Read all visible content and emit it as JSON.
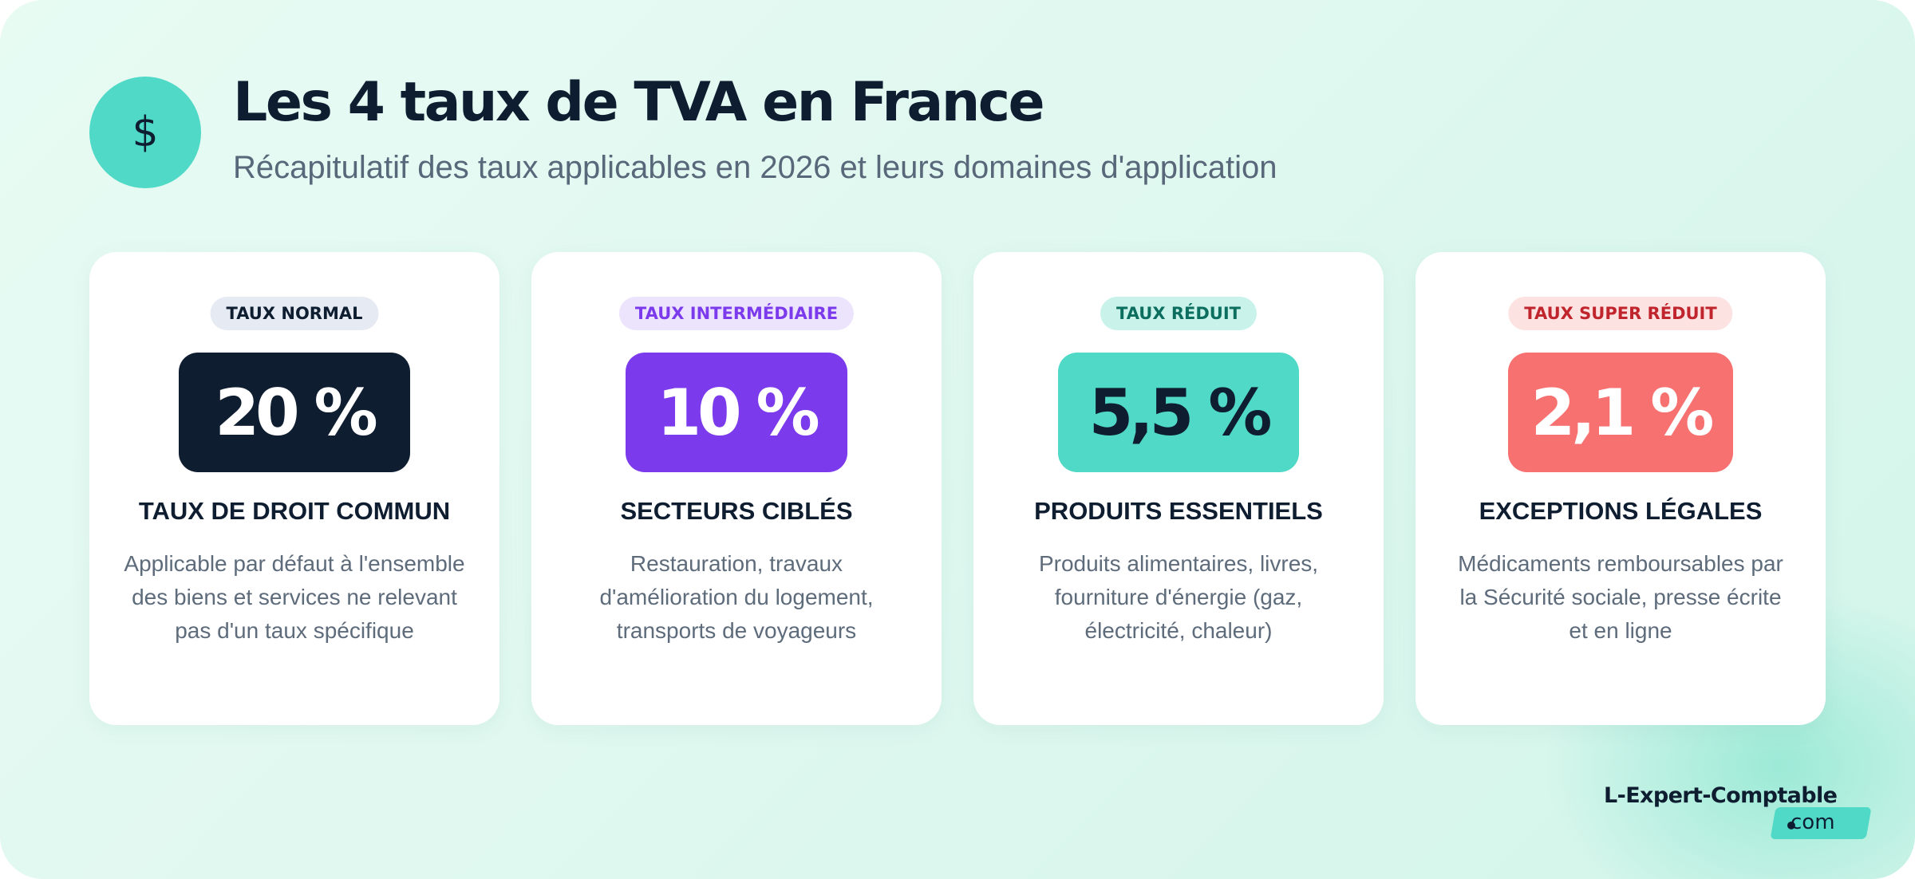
{
  "header": {
    "icon": "dollar-icon",
    "icon_glyph": "$",
    "title": "Les 4 taux de TVA en France",
    "subtitle": "Récapitulatif des taux applicables en 2026 et leurs domaines d'application"
  },
  "cards": [
    {
      "badge": "TAUX NORMAL",
      "rate": "20 %",
      "heading": "TAUX DE DROIT COMMUN",
      "description": "Applicable par défaut à l'ensemble des biens et services ne relevant pas d'un taux spécifique"
    },
    {
      "badge": "TAUX INTERMÉDIAIRE",
      "rate": "10 %",
      "heading": "SECTEURS CIBLÉS",
      "description": "Restauration, travaux d'amélioration du logement, transports de voyageurs"
    },
    {
      "badge": "TAUX RÉDUIT",
      "rate": "5,5 %",
      "heading": "PRODUITS ESSENTIELS",
      "description": "Produits alimentaires, livres, fourniture d'énergie (gaz, électricité, chaleur)"
    },
    {
      "badge": "TAUX SUPER RÉDUIT",
      "rate": "2,1 %",
      "heading": "EXCEPTIONS LÉGALES",
      "description": "Médicaments remboursables par la Sécurité sociale, presse écrite et en ligne"
    }
  ],
  "brand": {
    "name": "L-Expert-Comptable",
    "dot": "•",
    "domain": "com"
  },
  "colors": {
    "dark": "#0f1d31",
    "purple": "#7c3aed",
    "teal": "#4fd9c6",
    "coral": "#f87171"
  }
}
